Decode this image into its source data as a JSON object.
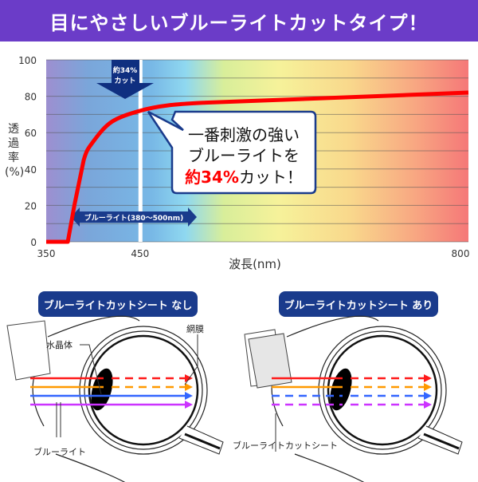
{
  "title": "目にやさしいブルーライトカットタイプ！",
  "chart_data": {
    "type": "line",
    "ylabel": "透過率(%)",
    "xlabel": "波長(nm)",
    "xlim": [
      350,
      800
    ],
    "ylim": [
      0,
      100
    ],
    "x_ticks": [
      "350",
      "450",
      "800"
    ],
    "y_ticks": [
      "0",
      "20",
      "40",
      "60",
      "80",
      "100"
    ],
    "grid": true,
    "series": [
      {
        "color": "#ff0000",
        "x": [
          350,
          373,
          380,
          390,
          400,
          420,
          450,
          480,
          520,
          600,
          700,
          800
        ],
        "y": [
          0,
          0,
          20,
          45,
          55,
          66,
          72,
          75,
          76.5,
          78,
          80,
          82
        ]
      }
    ],
    "annotations": {
      "arrow_label_line1": "約34%",
      "arrow_label_line2": "カット",
      "range_label": "ブルーライト(380〜500nm)",
      "callout_line1": "一番刺激の強い",
      "callout_line2": "ブルーライトを",
      "callout_line3_red": "約34%",
      "callout_line3_rest": "カット！",
      "marker_x": 450
    }
  },
  "diagrams": {
    "left_title": "ブルーライトカットシート なし",
    "right_title": "ブルーライトカットシート あり",
    "lens_label": "水晶体",
    "retina_label": "網膜",
    "light_label": "ブルーライト",
    "sheet_label": "ブルーライトカットシート",
    "ray_colors": [
      "#ff1a1a",
      "#ff9900",
      "#3366ff",
      "#cc33ff"
    ]
  }
}
